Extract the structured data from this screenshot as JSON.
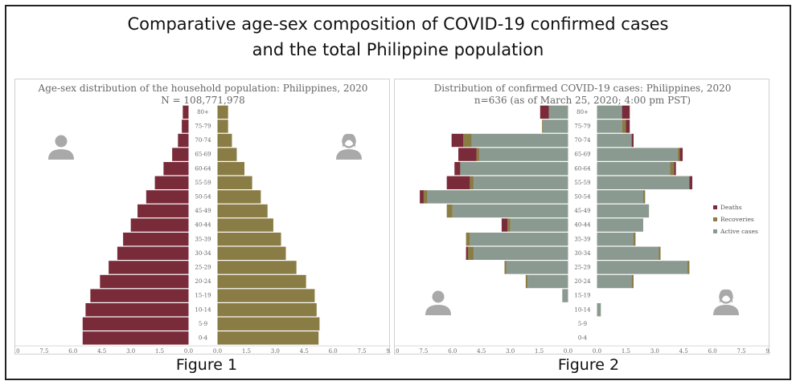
{
  "title_line1": "Comparative age-sex composition of COVID-19 confirmed cases",
  "title_line2": "and the total Philippine population",
  "captions": {
    "fig1": "Figure 1",
    "fig2": "Figure 2"
  },
  "colors": {
    "male": "#7a2b3a",
    "female": "#8a7c45",
    "deaths": "#7a2b3a",
    "recoveries": "#8a7c45",
    "active": "#8a9a90",
    "icon": "#a9a9a9"
  },
  "icons": {
    "male": "man-icon",
    "female": "woman-icon"
  },
  "chart_data": [
    {
      "type": "bar",
      "orientation": "horizontal-pyramid",
      "title": "Age-sex distribution of the household population: Philippines, 2020",
      "subtitle": "N = 108,771,978",
      "categories": [
        "80+",
        "75-79",
        "70-74",
        "65-69",
        "60-64",
        "55-59",
        "50-54",
        "45-49",
        "40-44",
        "35-39",
        "30-34",
        "25-29",
        "20-24",
        "15-19",
        "10-14",
        "5-9",
        "0-4"
      ],
      "series": [
        {
          "side": "left",
          "values": [
            0.3,
            0.35,
            0.55,
            0.85,
            1.3,
            1.75,
            2.2,
            2.65,
            3.0,
            3.4,
            3.7,
            4.15,
            4.6,
            5.1,
            5.35,
            5.5,
            5.5
          ]
        },
        {
          "side": "right",
          "values": [
            0.55,
            0.55,
            0.75,
            1.0,
            1.4,
            1.8,
            2.25,
            2.6,
            2.9,
            3.3,
            3.55,
            4.1,
            4.6,
            5.05,
            5.15,
            5.3,
            5.25
          ]
        }
      ],
      "xticks": [
        "9.0",
        "7.5",
        "6.0",
        "4.5",
        "3.0",
        "1.5",
        "0.0",
        "0.0",
        "1.5",
        "3.0",
        "4.5",
        "6.0",
        "7.5",
        "9.0"
      ],
      "xlim": [
        -9,
        9
      ]
    },
    {
      "type": "bar",
      "orientation": "horizontal-pyramid-stacked",
      "title": "Distribution of confirmed COVID-19 cases: Philippines, 2020",
      "subtitle": "n=636 (as of March 25, 2020; 4:00 pm PST)",
      "categories": [
        "80+",
        "75-79",
        "70-74",
        "65-69",
        "60-64",
        "55-59",
        "50-54",
        "45-49",
        "40-44",
        "35-39",
        "30-34",
        "25-29",
        "20-24",
        "15-19",
        "10-14",
        "5-9",
        "0-4"
      ],
      "legend": [
        "Deaths",
        "Recoveries",
        "Active cases"
      ],
      "legend_position": "right",
      "left": {
        "active": [
          1.0,
          1.3,
          5.0,
          4.6,
          5.6,
          4.9,
          7.3,
          6.0,
          3.0,
          5.1,
          4.9,
          3.2,
          2.1,
          0.3,
          0,
          0,
          0
        ],
        "recoveries": [
          0,
          0.05,
          0.45,
          0.15,
          0,
          0.2,
          0.2,
          0.3,
          0.15,
          0.2,
          0.3,
          0.1,
          0.1,
          0,
          0,
          0,
          0
        ],
        "deaths": [
          0.45,
          0,
          0.6,
          0.95,
          0.3,
          1.2,
          0.2,
          0,
          0.3,
          0,
          0.1,
          0,
          0,
          0,
          0,
          0,
          0
        ]
      },
      "right": {
        "active": [
          1.3,
          1.3,
          1.8,
          4.2,
          3.8,
          4.8,
          2.4,
          2.7,
          2.4,
          1.9,
          3.2,
          4.7,
          1.8,
          0,
          0.2,
          0,
          0
        ],
        "recoveries": [
          0,
          0.2,
          0,
          0.1,
          0.2,
          0,
          0.1,
          0,
          0,
          0.1,
          0.1,
          0.1,
          0.1,
          0,
          0,
          0,
          0
        ],
        "deaths": [
          0.4,
          0.2,
          0.1,
          0.15,
          0.1,
          0.15,
          0,
          0,
          0,
          0,
          0,
          0,
          0,
          0,
          0,
          0,
          0
        ]
      },
      "xticks": [
        "9.0",
        "7.5",
        "6.0",
        "4.5",
        "3.0",
        "1.5",
        "0.0",
        "0.0",
        "1.5",
        "3.0",
        "4.5",
        "6.0",
        "7.5",
        "9.0"
      ],
      "xlim": [
        -9,
        9
      ]
    }
  ]
}
